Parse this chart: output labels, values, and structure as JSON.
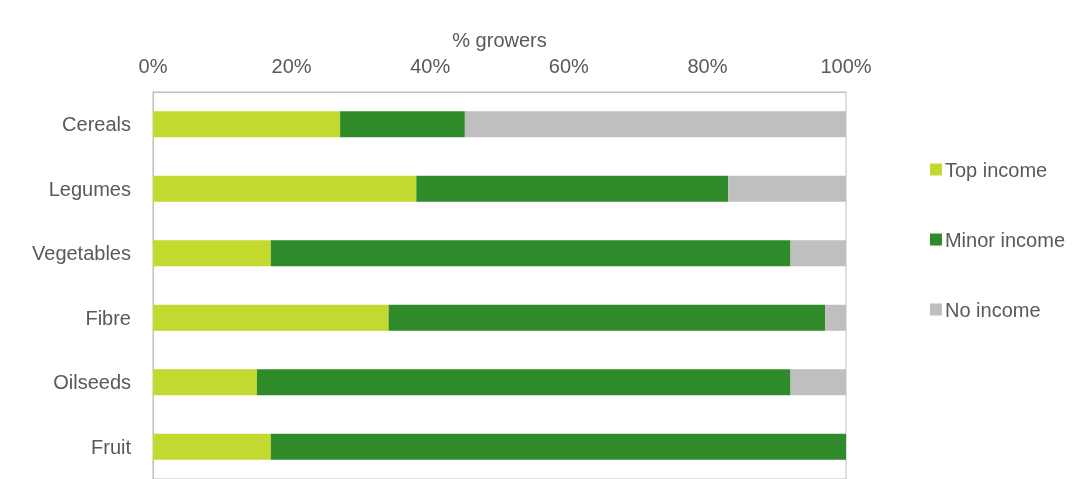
{
  "chart_data": {
    "type": "bar",
    "orientation": "horizontal",
    "stacked": true,
    "xlabel": "% growers",
    "categories": [
      "Cereals",
      "Legumes",
      "Vegetables",
      "Fibre",
      "Oilseeds",
      "Fruit"
    ],
    "series": [
      {
        "name": "Top income",
        "color": "#c2d92f",
        "values": [
          27,
          38,
          17,
          34,
          15,
          17
        ]
      },
      {
        "name": "Minor income",
        "color": "#2f8a29",
        "values": [
          18,
          45,
          75,
          63,
          77,
          83
        ]
      },
      {
        "name": "No income",
        "color": "#bfbfbf",
        "values": [
          55,
          17,
          8,
          3,
          8,
          0
        ]
      }
    ],
    "xlim": [
      0,
      100
    ],
    "xticks": [
      {
        "value": 0,
        "label": "0%"
      },
      {
        "value": 20,
        "label": "20%"
      },
      {
        "value": 40,
        "label": "40%"
      },
      {
        "value": 60,
        "label": "60%"
      },
      {
        "value": 80,
        "label": "80%"
      },
      {
        "value": 100,
        "label": "100%"
      }
    ],
    "grid": false,
    "legend": "right"
  }
}
